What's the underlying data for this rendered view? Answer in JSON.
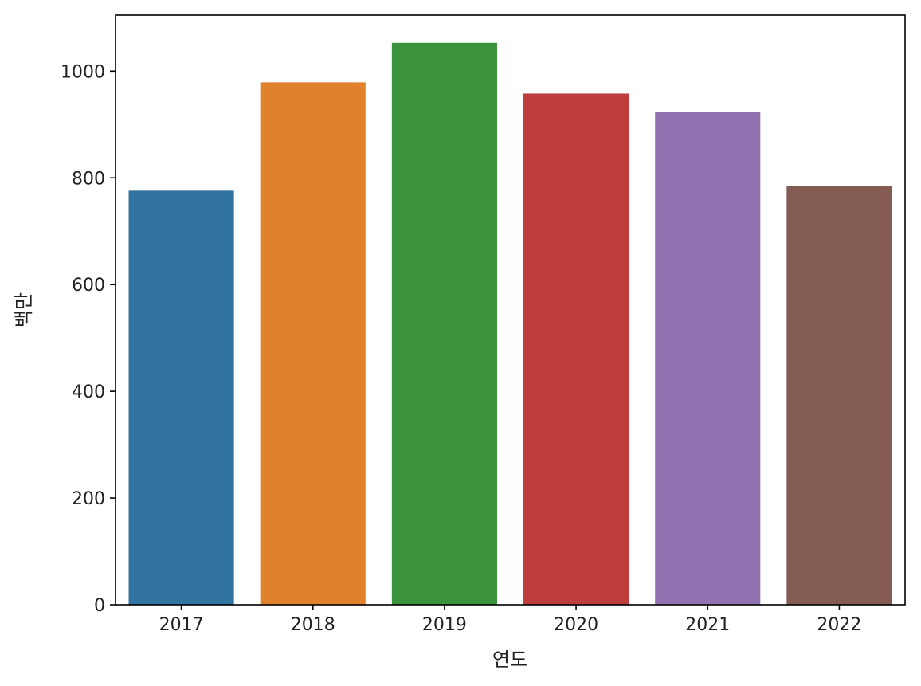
{
  "chart_data": {
    "type": "bar",
    "xlabel": "연도",
    "ylabel": "백만",
    "categories": [
      "2017",
      "2018",
      "2019",
      "2020",
      "2021",
      "2022"
    ],
    "values": [
      776,
      979,
      1053,
      958,
      923,
      784
    ],
    "colors": [
      "#3274a1",
      "#e1812c",
      "#3a923a",
      "#c03d3e",
      "#9372b2",
      "#845b53"
    ],
    "ylim": [
      0,
      1105
    ],
    "yticks": [
      0,
      200,
      400,
      600,
      800,
      1000
    ],
    "grid": false,
    "legend": "none"
  }
}
